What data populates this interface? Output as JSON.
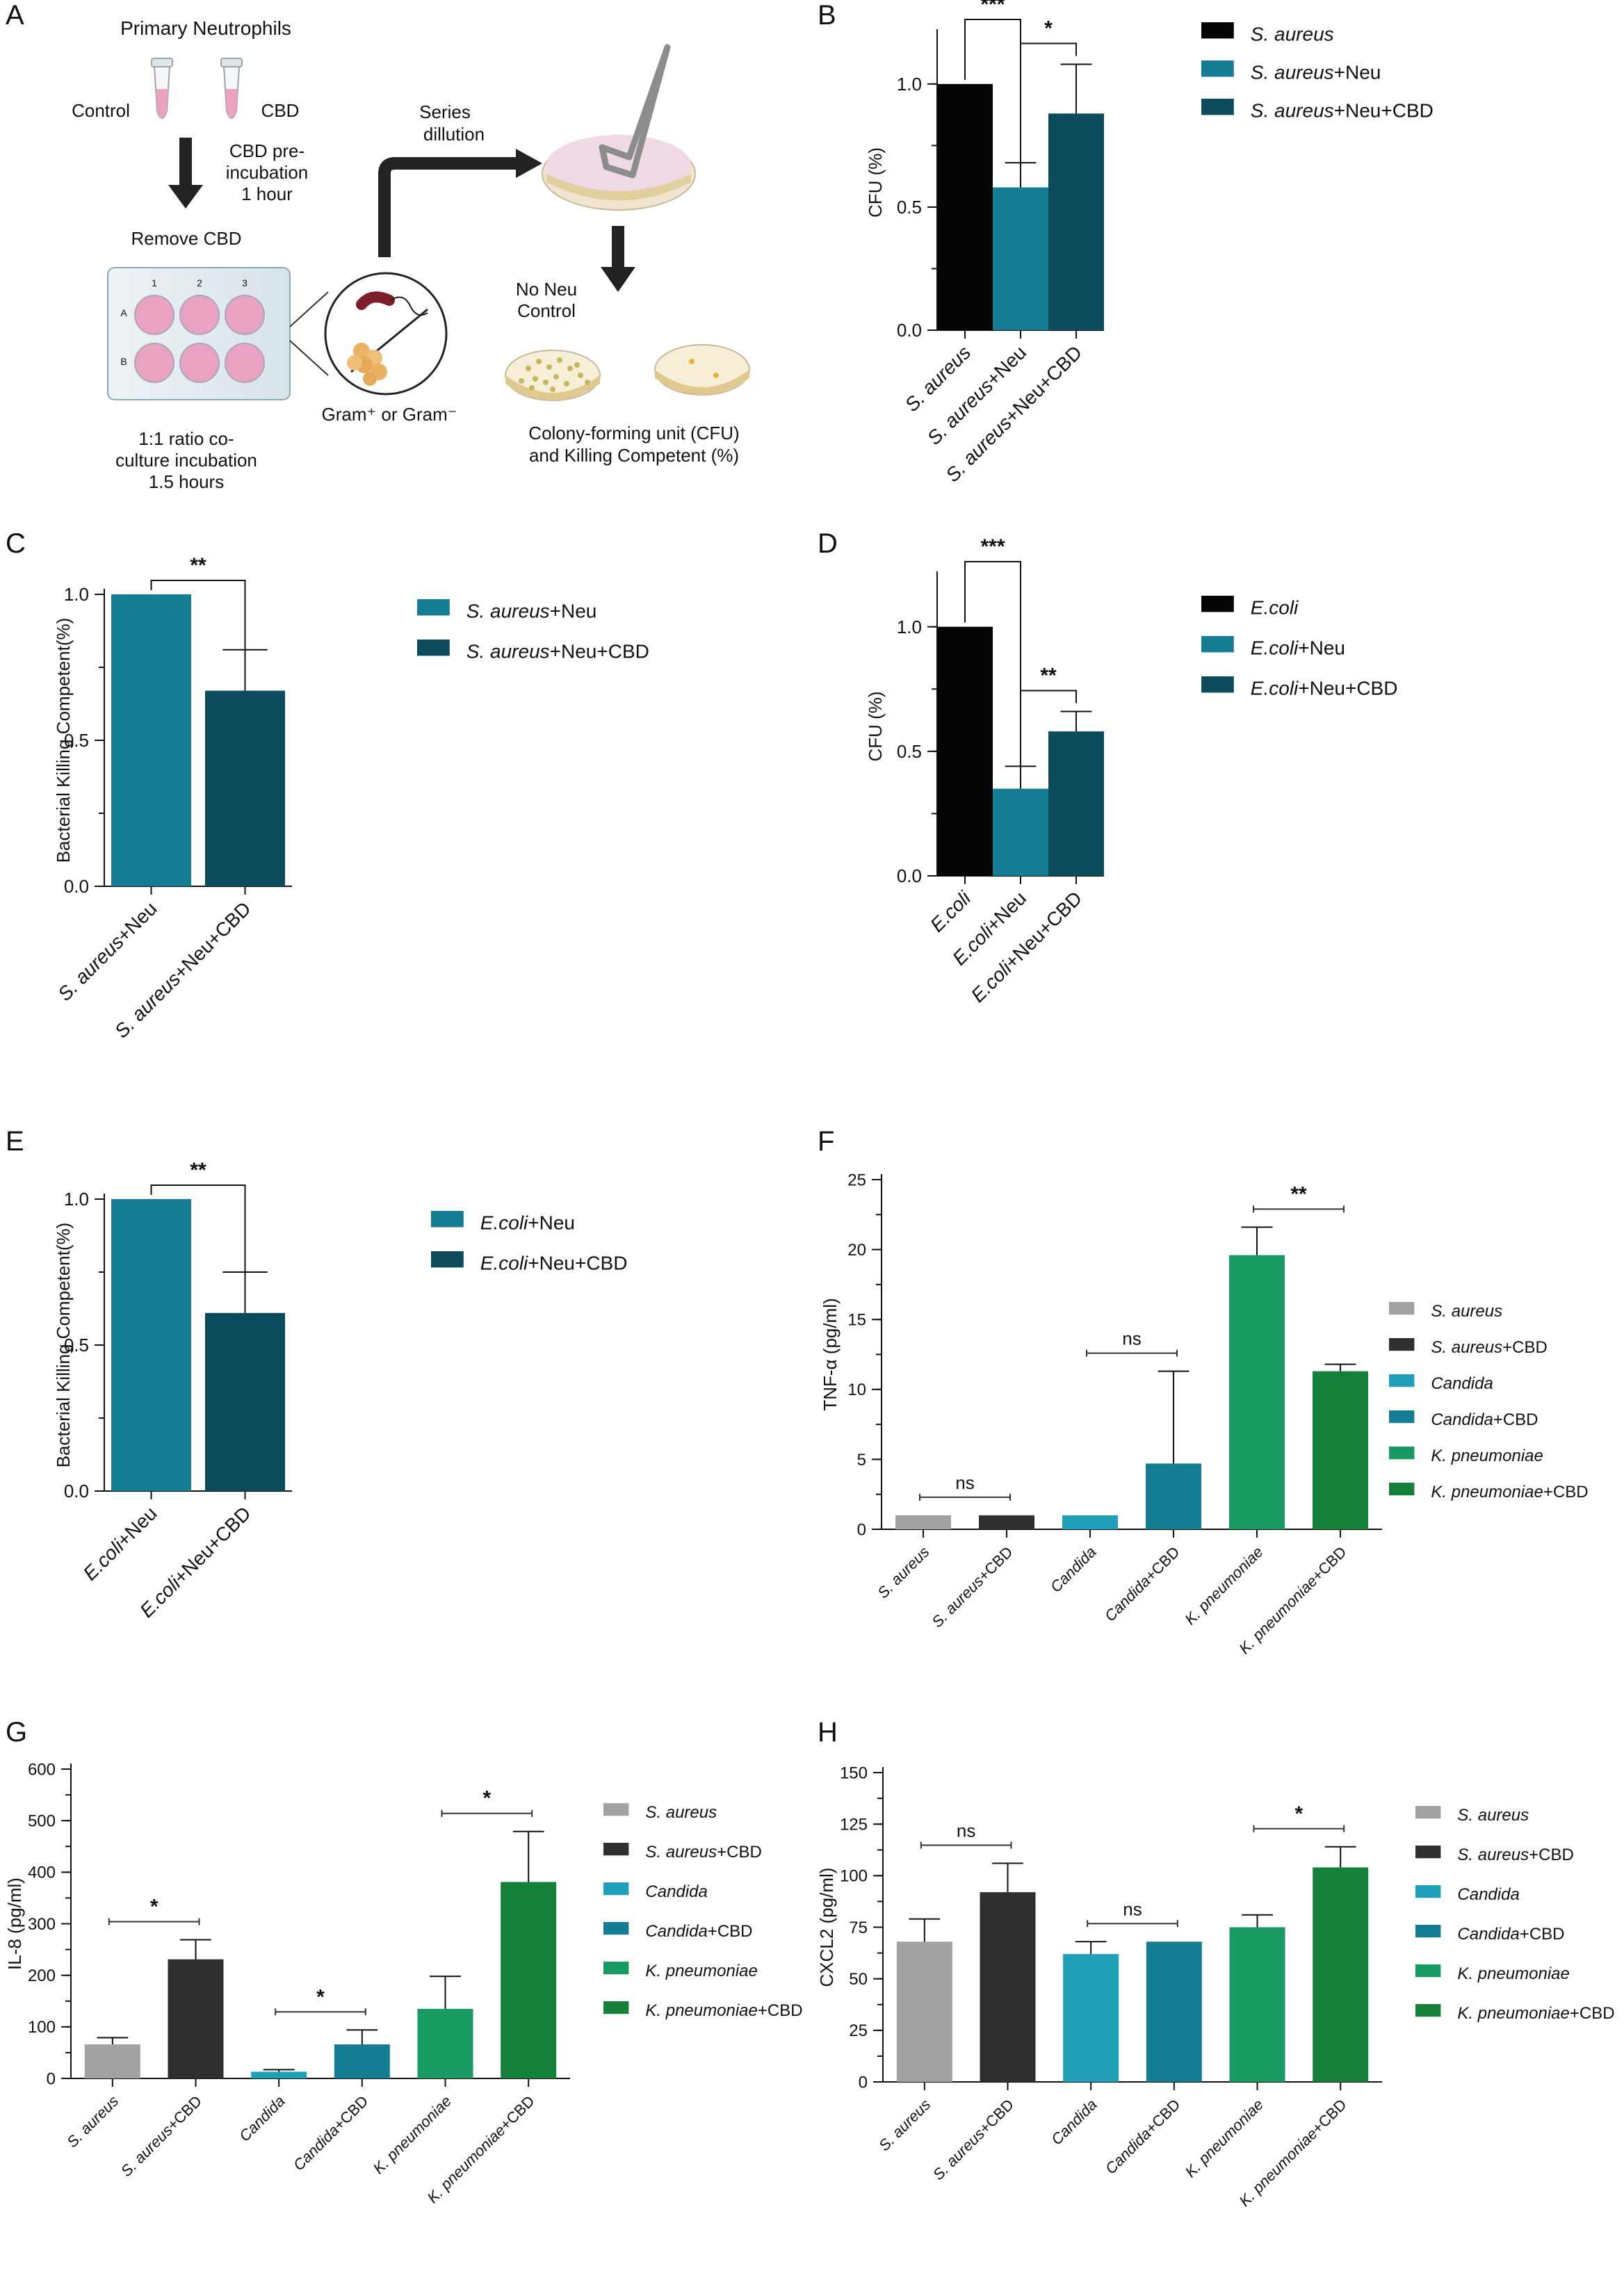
{
  "panel_letters": [
    "A",
    "B",
    "C",
    "D",
    "E",
    "F",
    "G",
    "H"
  ],
  "schematic": {
    "title": "Primary Neutrophils",
    "tube_labels": [
      "Control",
      "CBD"
    ],
    "preincubation": [
      "CBD pre-",
      "incubation",
      "1 hour"
    ],
    "remove": "Remove CBD",
    "plate_cols": [
      "1",
      "2",
      "3"
    ],
    "plate_rows": [
      "A",
      "B"
    ],
    "coculture": [
      "1:1 ratio co-",
      "culture incubation",
      "1.5 hours"
    ],
    "gram": "Gram⁺ or Gram⁻",
    "series": [
      "Series",
      "dillution"
    ],
    "no_neu": [
      "No Neu",
      "Control"
    ],
    "cfu": [
      "Colony-forming unit (CFU)",
      "and Killing Competent (%)"
    ]
  },
  "colors": {
    "black": "#050505",
    "teal": "#147c93",
    "dark_teal": "#0b4b5c",
    "grey": "#a1a1a4",
    "charcoal": "#2f2f2f",
    "cyan": "#1f9fb8",
    "green": "#1a9a63",
    "dark_green": "#148039",
    "pink": "#e9a3c0"
  },
  "chart_data": [
    {
      "panel": "B",
      "type": "bar",
      "ylabel": "CFU (%)",
      "ylim": [
        0,
        1.2
      ],
      "yticks": [
        0.0,
        0.5,
        1.0
      ],
      "tick_labels": [
        "0.0",
        "0.5",
        "1.0"
      ],
      "categories": [
        {
          "label": [
            {
              "t": "S. aureus",
              "i": true
            }
          ]
        },
        {
          "label": [
            {
              "t": "S. aureus",
              "i": true
            },
            {
              "t": "+Neu",
              "i": false
            }
          ]
        },
        {
          "label": [
            {
              "t": "S. aureus",
              "i": true
            },
            {
              "t": "+Neu+CBD",
              "i": false
            }
          ]
        }
      ],
      "values": [
        1.0,
        0.58,
        0.88
      ],
      "errors": [
        0,
        0.1,
        0.2
      ],
      "bar_colors": [
        "#050505",
        "#147c93",
        "#0b4b5c"
      ],
      "significance": [
        {
          "from": 0,
          "to": 1,
          "label": "***",
          "style": "drop"
        },
        {
          "from": 1,
          "to": 2,
          "label": "*",
          "style": "drop"
        }
      ],
      "legend": [
        [
          {
            "t": "S. aureus",
            "i": true
          }
        ],
        [
          {
            "t": "S. aureus",
            "i": true
          },
          {
            "t": "+Neu",
            "i": false
          }
        ],
        [
          {
            "t": "S. aureus",
            "i": true
          },
          {
            "t": "+Neu+CBD",
            "i": false
          }
        ]
      ],
      "legend_position": "top-right"
    },
    {
      "panel": "C",
      "type": "bar",
      "ylabel": "Bacterial Killing Competent(%)",
      "ylim": [
        0,
        1.0
      ],
      "yticks": [
        0.0,
        0.5,
        1.0
      ],
      "tick_labels": [
        "0.0",
        "0.5",
        "1.0"
      ],
      "categories": [
        {
          "label": [
            {
              "t": "S. aureus",
              "i": true
            },
            {
              "t": "+Neu",
              "i": false
            }
          ]
        },
        {
          "label": [
            {
              "t": "S. aureus",
              "i": true
            },
            {
              "t": "+Neu+CBD",
              "i": false
            }
          ]
        }
      ],
      "values": [
        1.0,
        0.67
      ],
      "errors": [
        0,
        0.14
      ],
      "bar_colors": [
        "#147c93",
        "#0b4b5c"
      ],
      "significance": [
        {
          "from": 0,
          "to": 1,
          "label": "**",
          "style": "drop"
        }
      ],
      "legend": [
        [
          {
            "t": "S. aureus",
            "i": true
          },
          {
            "t": "+Neu",
            "i": false
          }
        ],
        [
          {
            "t": "S. aureus",
            "i": true
          },
          {
            "t": "+Neu+CBD",
            "i": false
          }
        ]
      ],
      "legend_position": "top-right"
    },
    {
      "panel": "D",
      "type": "bar",
      "ylabel": "CFU (%)",
      "ylim": [
        0,
        1.2
      ],
      "yticks": [
        0.0,
        0.5,
        1.0
      ],
      "tick_labels": [
        "0.0",
        "0.5",
        "1.0"
      ],
      "categories": [
        {
          "label": [
            {
              "t": "E.coli",
              "i": true
            }
          ]
        },
        {
          "label": [
            {
              "t": "E.coli",
              "i": true
            },
            {
              "t": "+Neu",
              "i": false
            }
          ]
        },
        {
          "label": [
            {
              "t": "E.coli",
              "i": true
            },
            {
              "t": "+Neu+CBD",
              "i": false
            }
          ]
        }
      ],
      "values": [
        1.0,
        0.35,
        0.58
      ],
      "errors": [
        0,
        0.09,
        0.08
      ],
      "bar_colors": [
        "#050505",
        "#147c93",
        "#0b4b5c"
      ],
      "significance": [
        {
          "from": 0,
          "to": 1,
          "label": "***",
          "style": "drop"
        },
        {
          "from": 1,
          "to": 2,
          "label": "**",
          "style": "drop"
        }
      ],
      "legend": [
        [
          {
            "t": "E.coli",
            "i": true
          }
        ],
        [
          {
            "t": "E.coli",
            "i": true
          },
          {
            "t": "+Neu",
            "i": false
          }
        ],
        [
          {
            "t": "E.coli",
            "i": true
          },
          {
            "t": "+Neu+CBD",
            "i": false
          }
        ]
      ],
      "legend_position": "top-right"
    },
    {
      "panel": "E",
      "type": "bar",
      "ylabel": "Bacterial Killing Competent(%)",
      "ylim": [
        0,
        1.0
      ],
      "yticks": [
        0.0,
        0.5,
        1.0
      ],
      "tick_labels": [
        "0.0",
        "0.5",
        "1.0"
      ],
      "categories": [
        {
          "label": [
            {
              "t": "E.coli",
              "i": true
            },
            {
              "t": "+Neu",
              "i": false
            }
          ]
        },
        {
          "label": [
            {
              "t": "E.coli",
              "i": true
            },
            {
              "t": "+Neu+CBD",
              "i": false
            }
          ]
        }
      ],
      "values": [
        1.0,
        0.61
      ],
      "errors": [
        0,
        0.14
      ],
      "bar_colors": [
        "#147c93",
        "#0b4b5c"
      ],
      "significance": [
        {
          "from": 0,
          "to": 1,
          "label": "**",
          "style": "drop"
        }
      ],
      "legend": [
        [
          {
            "t": "E.coli",
            "i": true
          },
          {
            "t": "+Neu",
            "i": false
          }
        ],
        [
          {
            "t": "E.coli",
            "i": true
          },
          {
            "t": "+Neu+CBD",
            "i": false
          }
        ]
      ],
      "legend_position": "top-right"
    },
    {
      "panel": "F",
      "type": "bar",
      "ylabel": "TNF-α (pg/ml)",
      "ylim": [
        0,
        25
      ],
      "yticks": [
        0,
        5,
        10,
        15,
        20,
        25
      ],
      "tick_labels": [
        "0",
        "5",
        "10",
        "15",
        "20",
        "25"
      ],
      "categories": [
        {
          "label": [
            {
              "t": "S. aureus",
              "i": true
            }
          ]
        },
        {
          "label": [
            {
              "t": "S. aureus",
              "i": true
            },
            {
              "t": "+CBD",
              "i": false
            }
          ]
        },
        {
          "label": [
            {
              "t": "Candida",
              "i": true
            }
          ]
        },
        {
          "label": [
            {
              "t": "Candida",
              "i": true
            },
            {
              "t": "+CBD",
              "i": false
            }
          ]
        },
        {
          "label": [
            {
              "t": "K. pneumoniae",
              "i": true
            }
          ]
        },
        {
          "label": [
            {
              "t": "K. pneumoniae",
              "i": true
            },
            {
              "t": "+CBD",
              "i": false
            }
          ]
        }
      ],
      "values": [
        1.0,
        1.0,
        1.0,
        4.7,
        19.6,
        11.3
      ],
      "errors": [
        0,
        0,
        0,
        6.6,
        2.0,
        0.5
      ],
      "bar_colors": [
        "#a1a1a4",
        "#2f2f2f",
        "#1f9fb8",
        "#147c93",
        "#1a9a63",
        "#148039"
      ],
      "significance": [
        {
          "from": 0,
          "to": 1,
          "label": "ns",
          "style": "flat"
        },
        {
          "from": 2,
          "to": 3,
          "label": "ns",
          "style": "flat"
        },
        {
          "from": 4,
          "to": 5,
          "label": "**",
          "style": "flat"
        }
      ],
      "legend": [
        [
          {
            "t": "S. aureus",
            "i": true
          }
        ],
        [
          {
            "t": "S. aureus",
            "i": true
          },
          {
            "t": "+CBD",
            "i": false
          }
        ],
        [
          {
            "t": "Candida",
            "i": true
          }
        ],
        [
          {
            "t": "Candida",
            "i": true
          },
          {
            "t": "+CBD",
            "i": false
          }
        ],
        [
          {
            "t": "K. pneumoniae",
            "i": true
          }
        ],
        [
          {
            "t": "K. pneumoniae",
            "i": true
          },
          {
            "t": "+CBD",
            "i": false
          }
        ]
      ],
      "legend_position": "right"
    },
    {
      "panel": "G",
      "type": "bar",
      "ylabel": "IL-8 (pg/ml)",
      "ylim": [
        0,
        600
      ],
      "yticks": [
        0,
        100,
        200,
        300,
        400,
        500,
        600
      ],
      "tick_labels": [
        "0",
        "100",
        "200",
        "300",
        "400",
        "500",
        "600"
      ],
      "categories": [
        {
          "label": [
            {
              "t": "S. aureus",
              "i": true
            }
          ]
        },
        {
          "label": [
            {
              "t": "S. aureus",
              "i": true
            },
            {
              "t": "+CBD",
              "i": false
            }
          ]
        },
        {
          "label": [
            {
              "t": "Candida",
              "i": true
            }
          ]
        },
        {
          "label": [
            {
              "t": "Candida",
              "i": true
            },
            {
              "t": "+CBD",
              "i": false
            }
          ]
        },
        {
          "label": [
            {
              "t": "K. pneumoniae",
              "i": true
            }
          ]
        },
        {
          "label": [
            {
              "t": "K. pneumoniae",
              "i": true
            },
            {
              "t": "+CBD",
              "i": false
            }
          ]
        }
      ],
      "values": [
        66,
        231,
        13,
        66,
        135,
        381
      ],
      "errors": [
        13,
        38,
        4,
        28,
        63,
        98
      ],
      "bar_colors": [
        "#a1a1a4",
        "#2f2f2f",
        "#1f9fb8",
        "#147c93",
        "#1a9a63",
        "#148039"
      ],
      "significance": [
        {
          "from": 0,
          "to": 1,
          "label": "*",
          "style": "flat"
        },
        {
          "from": 2,
          "to": 3,
          "label": "*",
          "style": "flat"
        },
        {
          "from": 4,
          "to": 5,
          "label": "*",
          "style": "flat"
        }
      ],
      "legend": [
        [
          {
            "t": "S. aureus",
            "i": true
          }
        ],
        [
          {
            "t": "S. aureus",
            "i": true
          },
          {
            "t": "+CBD",
            "i": false
          }
        ],
        [
          {
            "t": "Candida",
            "i": true
          }
        ],
        [
          {
            "t": "Candida",
            "i": true
          },
          {
            "t": "+CBD",
            "i": false
          }
        ],
        [
          {
            "t": "K. pneumoniae",
            "i": true
          }
        ],
        [
          {
            "t": "K. pneumoniae",
            "i": true
          },
          {
            "t": "+CBD",
            "i": false
          }
        ]
      ],
      "legend_position": "right"
    },
    {
      "panel": "H",
      "type": "bar",
      "ylabel": "CXCL2 (pg/ml)",
      "ylim": [
        0,
        150
      ],
      "yticks": [
        0,
        25,
        50,
        75,
        100,
        125,
        150
      ],
      "tick_labels": [
        "0",
        "25",
        "50",
        "75",
        "100",
        "125",
        "150"
      ],
      "categories": [
        {
          "label": [
            {
              "t": "S. aureus",
              "i": true
            }
          ]
        },
        {
          "label": [
            {
              "t": "S. aureus",
              "i": true
            },
            {
              "t": "+CBD",
              "i": false
            }
          ]
        },
        {
          "label": [
            {
              "t": "Candida",
              "i": true
            }
          ]
        },
        {
          "label": [
            {
              "t": "Candida",
              "i": true
            },
            {
              "t": "+CBD",
              "i": false
            }
          ]
        },
        {
          "label": [
            {
              "t": "K. pneumoniae",
              "i": true
            }
          ]
        },
        {
          "label": [
            {
              "t": "K. pneumoniae",
              "i": true
            },
            {
              "t": "+CBD",
              "i": false
            }
          ]
        }
      ],
      "values": [
        68,
        92,
        62,
        68,
        75,
        104
      ],
      "errors": [
        11,
        14,
        6,
        0,
        6,
        10
      ],
      "bar_colors": [
        "#a1a1a4",
        "#2f2f2f",
        "#1f9fb8",
        "#147c93",
        "#1a9a63",
        "#148039"
      ],
      "significance": [
        {
          "from": 0,
          "to": 1,
          "label": "ns",
          "style": "flat"
        },
        {
          "from": 2,
          "to": 3,
          "label": "ns",
          "style": "flat"
        },
        {
          "from": 4,
          "to": 5,
          "label": "*",
          "style": "flat"
        }
      ],
      "legend": [
        [
          {
            "t": "S. aureus",
            "i": true
          }
        ],
        [
          {
            "t": "S. aureus",
            "i": true
          },
          {
            "t": "+CBD",
            "i": false
          }
        ],
        [
          {
            "t": "Candida",
            "i": true
          }
        ],
        [
          {
            "t": "Candida",
            "i": true
          },
          {
            "t": "+CBD",
            "i": false
          }
        ],
        [
          {
            "t": "K. pneumoniae",
            "i": true
          }
        ],
        [
          {
            "t": "K. pneumoniae",
            "i": true
          },
          {
            "t": "+CBD",
            "i": false
          }
        ]
      ],
      "legend_position": "right"
    }
  ]
}
